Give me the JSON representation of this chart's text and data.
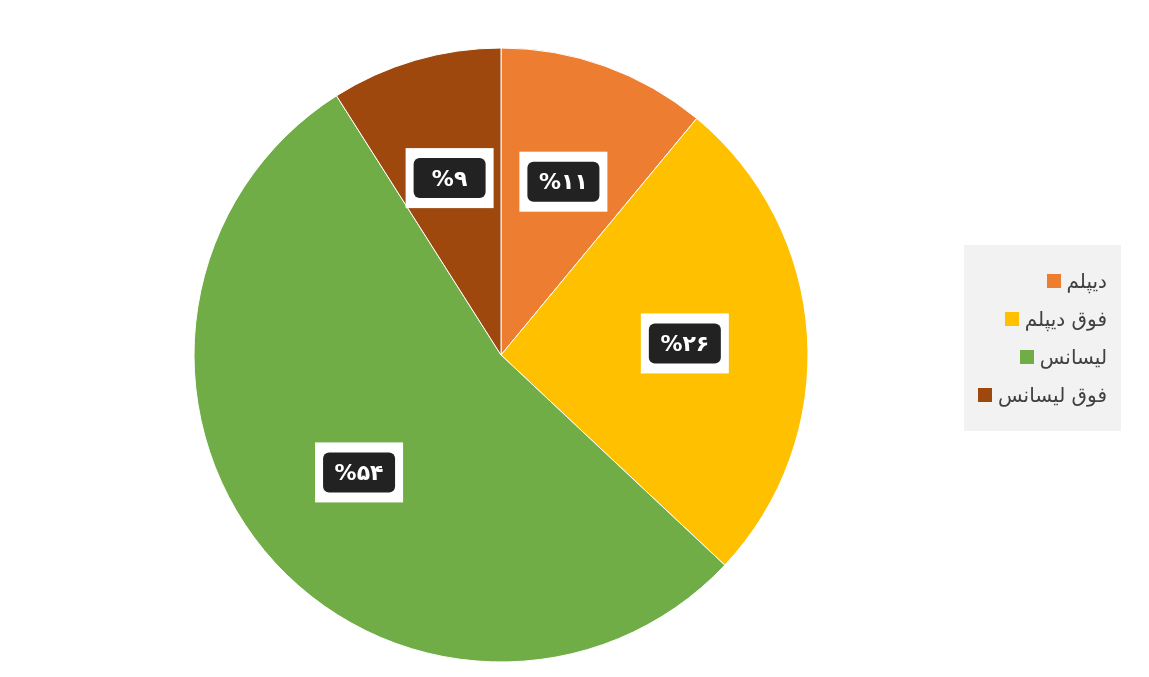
{
  "chart_data": {
    "type": "pie",
    "categories": [
      "دیپلم",
      "فوق دیپلم",
      "لیسانس",
      "فوق لیسانس"
    ],
    "values": [
      11,
      26,
      54,
      9
    ],
    "colors": [
      "#ed7d31",
      "#ffc000",
      "#70ad47",
      "#9e480e"
    ],
    "value_labels": [
      "%۱۱",
      "%۲۶",
      "%۵۴",
      "%۹"
    ],
    "legend": "right"
  }
}
